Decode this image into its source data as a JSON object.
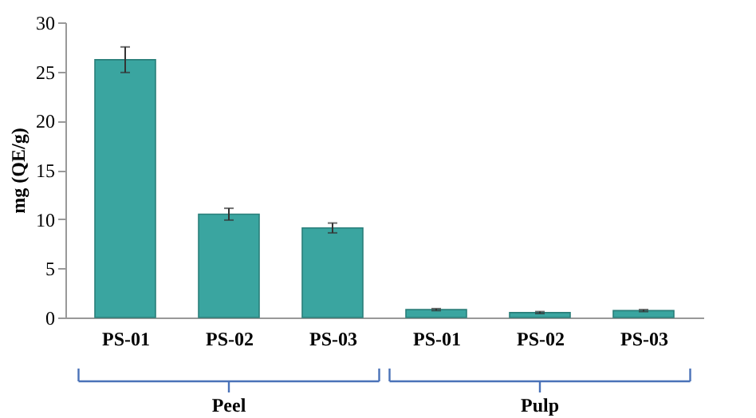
{
  "chart_data": {
    "type": "bar",
    "ylabel": "mg (QE/g)",
    "categories": [
      "PS-01",
      "PS-02",
      "PS-03",
      "PS-01",
      "PS-02",
      "PS-03"
    ],
    "values": [
      26.2,
      10.5,
      9.1,
      0.8,
      0.5,
      0.7
    ],
    "errors": [
      1.3,
      0.6,
      0.5,
      0.1,
      0.1,
      0.1
    ],
    "color": "#3aa5a0",
    "ylim": [
      0,
      30
    ],
    "yticks": [
      0,
      5,
      10,
      15,
      20,
      25,
      30
    ],
    "grid": false,
    "annotations": [
      "Peel",
      "Pulp"
    ]
  }
}
